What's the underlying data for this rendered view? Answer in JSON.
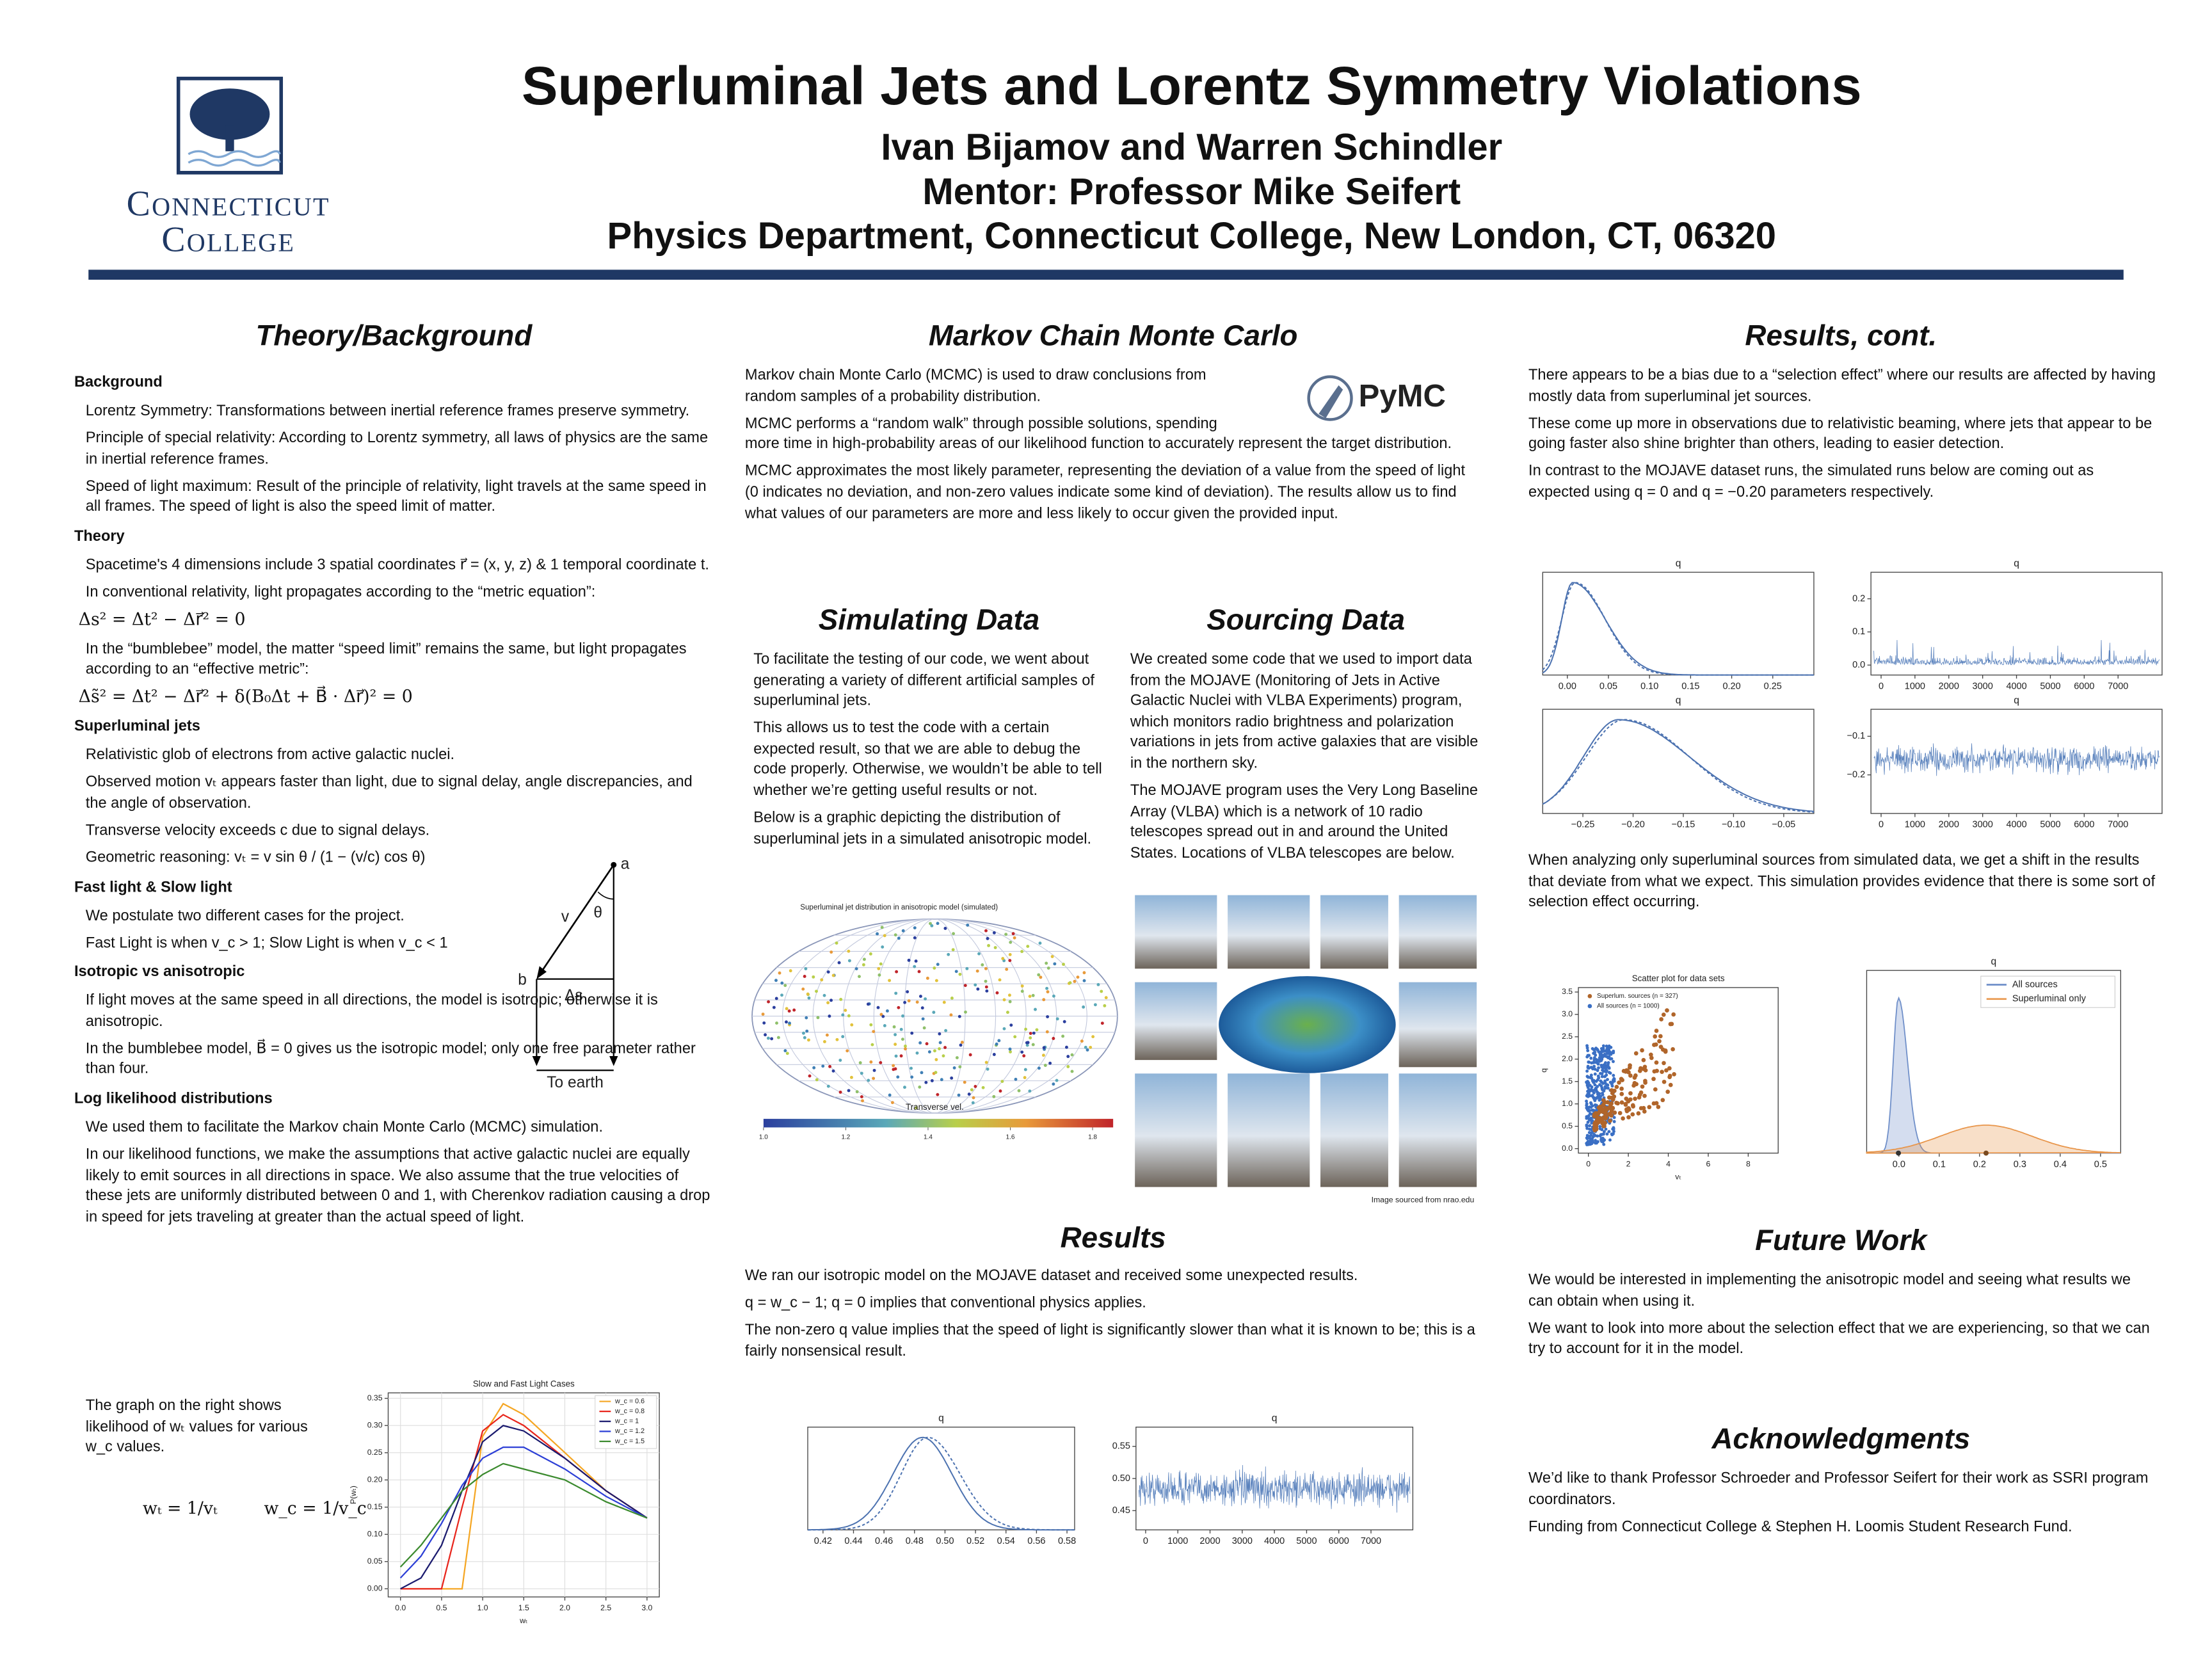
{
  "header": {
    "title": "Superluminal Jets and Lorentz Symmetry Violations",
    "authors": "Ivan Bijamov and Warren Schindler",
    "mentor": "Mentor: Professor Mike Seifert",
    "affiliation": "Physics Department, Connecticut College, New London, CT, 06320",
    "logo": [
      "Connecticut",
      "College"
    ]
  },
  "theory": {
    "heading": "Theory/Background",
    "sections": [
      {
        "title": "Background",
        "items": [
          "Lorentz Symmetry: Transformations between inertial reference frames preserve symmetry.",
          "Principle of special relativity: According to Lorentz symmetry, all laws of physics are the same in inertial reference frames.",
          "Speed of light maximum: Result of the principle of relativity, light travels at the same speed in all frames. The speed of light is also the speed limit of matter."
        ]
      },
      {
        "title": "Theory",
        "items": [
          "Spacetime's 4 dimensions include 3 spatial coordinates r⃗ = (x, y, z) & 1 temporal coordinate t.",
          "In conventional relativity, light propagates according to the “metric equation”:",
          "Δs² = Δt² − Δr⃗² = 0",
          "In the “bumblebee” model, the matter “speed limit” remains the same, but light propagates according to an “effective metric”:",
          "Δs̃² = Δt² − Δr⃗² + δ(B₀Δt + B⃗ · Δr⃗)² = 0"
        ]
      },
      {
        "title": "Superluminal jets",
        "items": [
          "Relativistic glob of electrons from active galactic nuclei.",
          "Observed motion vₜ appears faster than light, due to signal delay, angle discrepancies, and the angle of observation.",
          "Transverse velocity exceeds c due to signal delays.",
          "Geometric reasoning: vₜ = v sin θ / (1 − (v/c) cos θ)"
        ]
      },
      {
        "title": "Fast light & Slow light",
        "items": [
          "We postulate two different cases for the project.",
          "Fast Light is when v_c > 1; Slow Light is when v_c < 1"
        ]
      },
      {
        "title": "Isotropic vs anisotropic",
        "items": [
          "If light moves at the same speed in all directions, the model is isotropic; otherwise it is anisotropic.",
          "In the bumblebee model, B⃗ = 0 gives us the isotropic model; only one free parameter rather than four."
        ]
      },
      {
        "title": "Log likelihood distributions",
        "items": [
          "We used them to facilitate the Markov chain Monte Carlo (MCMC) simulation.",
          "In our likelihood functions, we make the assumptions that active galactic nuclei are equally likely to emit sources in all directions in space. We also assume that the true velocities of these jets are uniformly distributed between 0 and 1, with Cherenkov radiation causing a drop in speed for jets traveling at greater than the actual speed of light."
        ]
      }
    ],
    "diagram": {
      "a": "a",
      "b": "b",
      "v": "v",
      "theta": "θ",
      "ds": "Δs",
      "earth": "To earth"
    },
    "graph_note": "The graph on the right shows likelihood of wₜ values for various w_c values.",
    "formulas": [
      "wₜ = 1/vₜ",
      "w_c = 1/v_c"
    ],
    "chart": {
      "type": "line",
      "title": "Slow and Fast Light Cases",
      "xlabel": "wₜ",
      "ylabel": "P(wₜ)",
      "x": [
        0,
        0.25,
        0.5,
        0.75,
        1,
        1.25,
        1.5,
        2,
        2.5,
        3
      ],
      "series": [
        {
          "name": "w_c = 0.6",
          "color": "#f5a623",
          "values": [
            0,
            0,
            0,
            0,
            0.28,
            0.34,
            0.32,
            0.25,
            0.18,
            0.13
          ]
        },
        {
          "name": "w_c = 0.8",
          "color": "#e8251c",
          "values": [
            0,
            0,
            0,
            0.15,
            0.29,
            0.32,
            0.3,
            0.24,
            0.18,
            0.13
          ]
        },
        {
          "name": "w_c = 1",
          "color": "#1a1a6e",
          "values": [
            0,
            0.02,
            0.08,
            0.18,
            0.27,
            0.3,
            0.29,
            0.24,
            0.18,
            0.13
          ]
        },
        {
          "name": "w_c = 1.2",
          "color": "#2c3fd6",
          "values": [
            0.02,
            0.06,
            0.12,
            0.19,
            0.24,
            0.26,
            0.26,
            0.22,
            0.17,
            0.13
          ]
        },
        {
          "name": "w_c = 1.5",
          "color": "#3b8a2e",
          "values": [
            0.04,
            0.08,
            0.13,
            0.18,
            0.21,
            0.23,
            0.22,
            0.2,
            0.16,
            0.13
          ]
        }
      ],
      "xlim": [
        -0.15,
        3.15
      ],
      "ylim": [
        -0.015,
        0.36
      ],
      "xticks": [
        {
          "value": 0,
          "label": "0.0"
        },
        0.5,
        {
          "value": 1,
          "label": "1.0"
        },
        1.5,
        {
          "value": 2,
          "label": "2.0"
        },
        2.5,
        {
          "value": 3,
          "label": "3.0"
        }
      ],
      "yticks": [
        {
          "value": 0,
          "label": "0.00"
        },
        0.05,
        {
          "value": 0.1,
          "label": "0.10"
        },
        0.15,
        {
          "value": 0.2,
          "label": "0.20"
        },
        0.25,
        {
          "value": 0.3,
          "label": "0.30"
        },
        0.35
      ],
      "grid": true
    }
  },
  "mcmc": {
    "heading": "Markov Chain Monte Carlo",
    "logo": "PyMC",
    "paragraphs": [
      "Markov chain Monte Carlo (MCMC) is used to draw conclusions from random samples of a probability distribution.",
      "MCMC performs a “random walk” through possible solutions, spending more time in high-probability areas of our likelihood function to accurately represent the target distribution.",
      "MCMC approximates the most likely parameter, representing the deviation of a value from the speed of light (0 indicates no deviation, and non-zero values indicate some kind of deviation). The results allow us to find what values of our parameters are more and less likely to occur given the provided input."
    ]
  },
  "simulating": {
    "heading": "Simulating Data",
    "paragraphs": [
      "To facilitate the testing of our code, we went about generating a variety of different artificial samples of superluminal jets.",
      "This allows us to test the code with a certain expected result, so that we are able to debug the code properly. Otherwise, we wouldn’t be able to tell whether we’re getting useful results or not.",
      "Below is a graphic depicting the distribution of superluminal jets in a simulated anisotropic model."
    ],
    "figure": {
      "title": "Superluminal jet distribution in anisotropic model (simulated)",
      "colorbar_label": "Transverse vel.",
      "clim": [
        1.0,
        1.85
      ],
      "ticks": [
        {
          "value": 1,
          "label": "1.0"
        },
        1.2,
        1.4,
        1.6,
        1.8
      ]
    }
  },
  "sourcing": {
    "heading": "Sourcing Data",
    "paragraphs": [
      "We created some code that we used to import data from the MOJAVE (Monitoring of Jets in Active Galactic Nuclei with VLBA Experiments) program, which monitors radio brightness and polarization variations in jets from active galaxies that are visible in the northern sky.",
      "The MOJAVE program uses the Very Long Baseline Array (VLBA) which is a network of 10 radio telescopes spread out in and around the United States. Locations of VLBA telescopes are below."
    ],
    "credit": "Image sourced from nrao.edu"
  },
  "results": {
    "heading": "Results",
    "paragraphs": [
      "We ran our isotropic model on the MOJAVE dataset and received some unexpected results.",
      "q = w_c − 1; q = 0 implies that conventional physics applies.",
      "The non-zero q value implies that the speed of light is significantly slower than what it is known to be; this is a fairly nonsensical result."
    ],
    "plots": [
      {
        "title": "q",
        "xlim": [
          0.41,
          0.585
        ],
        "xticks": [
          0.42,
          0.44,
          0.46,
          0.48,
          {
            "value": 0.5,
            "label": "0.50"
          },
          0.52,
          0.54,
          0.56,
          0.58
        ]
      },
      {
        "title": "q",
        "xlim": [
          -300,
          8300
        ],
        "ylim": [
          0.42,
          0.58
        ],
        "xticks": [
          0,
          1000,
          2000,
          3000,
          4000,
          5000,
          6000,
          7000
        ],
        "yticks": [
          0.45,
          {
            "value": 0.5,
            "label": "0.50"
          },
          0.55
        ]
      }
    ]
  },
  "results_cont": {
    "heading": "Results, cont.",
    "paragraphs": [
      "There appears to be a bias due to a “selection effect” where our results are affected by having mostly data from superluminal jet sources.",
      "These come up more in observations due to relativistic beaming, where jets that appear to be going faster also shine brighter than others, leading to easier detection.",
      "In contrast to the MOJAVE dataset runs, the simulated runs below are coming out as expected using q = 0  and q = −0.20 parameters respectively."
    ],
    "plots": [
      {
        "title": "q",
        "xlim": [
          -0.03,
          0.3
        ],
        "xticks": [
          {
            "value": 0,
            "label": "0.00"
          },
          0.05,
          {
            "value": 0.1,
            "label": "0.10"
          },
          0.15,
          {
            "value": 0.2,
            "label": "0.20"
          },
          0.25
        ]
      },
      {
        "title": "q",
        "xlim": [
          -300,
          8300
        ],
        "ylim": [
          -0.03,
          0.28
        ],
        "xticks": [
          0,
          1000,
          2000,
          3000,
          4000,
          5000,
          6000,
          7000
        ],
        "yticks": [
          {
            "value": 0,
            "label": "0.0"
          },
          0.1,
          0.2
        ]
      },
      {
        "title": "q",
        "xlim": [
          -0.29,
          -0.02
        ],
        "xticks": [
          {
            "value": -0.25,
            "label": "−0.25"
          },
          {
            "value": -0.2,
            "label": "−0.20"
          },
          {
            "value": -0.15,
            "label": "−0.15"
          },
          {
            "value": -0.1,
            "label": "−0.10"
          },
          {
            "value": -0.05,
            "label": "−0.05"
          }
        ]
      },
      {
        "title": "q",
        "xlim": [
          -300,
          8300
        ],
        "ylim": [
          -0.3,
          -0.03
        ],
        "xticks": [
          0,
          1000,
          2000,
          3000,
          4000,
          5000,
          6000,
          7000
        ],
        "yticks": [
          {
            "value": -0.1,
            "label": "−0.1"
          },
          {
            "value": -0.2,
            "label": "−0.2"
          }
        ]
      }
    ],
    "paragraph2": "When analyzing only superluminal sources from simulated data, we get a shift in the results that deviate from what we expect. This simulation provides evidence that there is some sort of selection effect occurring.",
    "scatter": {
      "title": "Scatter plot for data sets",
      "xlabel": "vₜ",
      "ylabel": "q",
      "legend": [
        {
          "name": "Superlum. sources (n = 327)",
          "color": "#b0652a"
        },
        {
          "name": "All sources (n = 1000)",
          "color": "#3a6fc4"
        }
      ],
      "xlim": [
        -0.5,
        9.5
      ],
      "ylim": [
        -0.1,
        3.6
      ],
      "xticks": [
        0,
        2,
        4,
        6,
        8
      ],
      "yticks": [
        {
          "value": 0,
          "label": "0.0"
        },
        0.5,
        {
          "value": 1,
          "label": "1.0"
        },
        1.5,
        {
          "value": 2,
          "label": "2.0"
        },
        2.5,
        {
          "value": 3,
          "label": "3.0"
        },
        3.5
      ]
    },
    "kde": {
      "title": "q",
      "legend": [
        {
          "name": "All sources",
          "color": "#6f8fc9"
        },
        {
          "name": "Superluminal only",
          "color": "#e8954a"
        }
      ],
      "xlim": [
        -0.08,
        0.55
      ],
      "xticks": [
        {
          "value": 0,
          "label": "0.0"
        },
        0.1,
        0.2,
        0.3,
        0.4,
        0.5
      ]
    }
  },
  "future": {
    "heading": "Future Work",
    "paragraphs": [
      "We would be interested in implementing the anisotropic model and seeing what results we can obtain when using it.",
      "We want to look into more about the selection effect that we are experiencing, so that we can try to account for it in the model."
    ]
  },
  "ack": {
    "heading": "Acknowledgments",
    "paragraphs": [
      "We’d like to thank Professor Schroeder and Professor Seifert for their work as SSRI program coordinators.",
      "Funding from Connecticut College & Stephen H. Loomis Student Research Fund."
    ]
  }
}
